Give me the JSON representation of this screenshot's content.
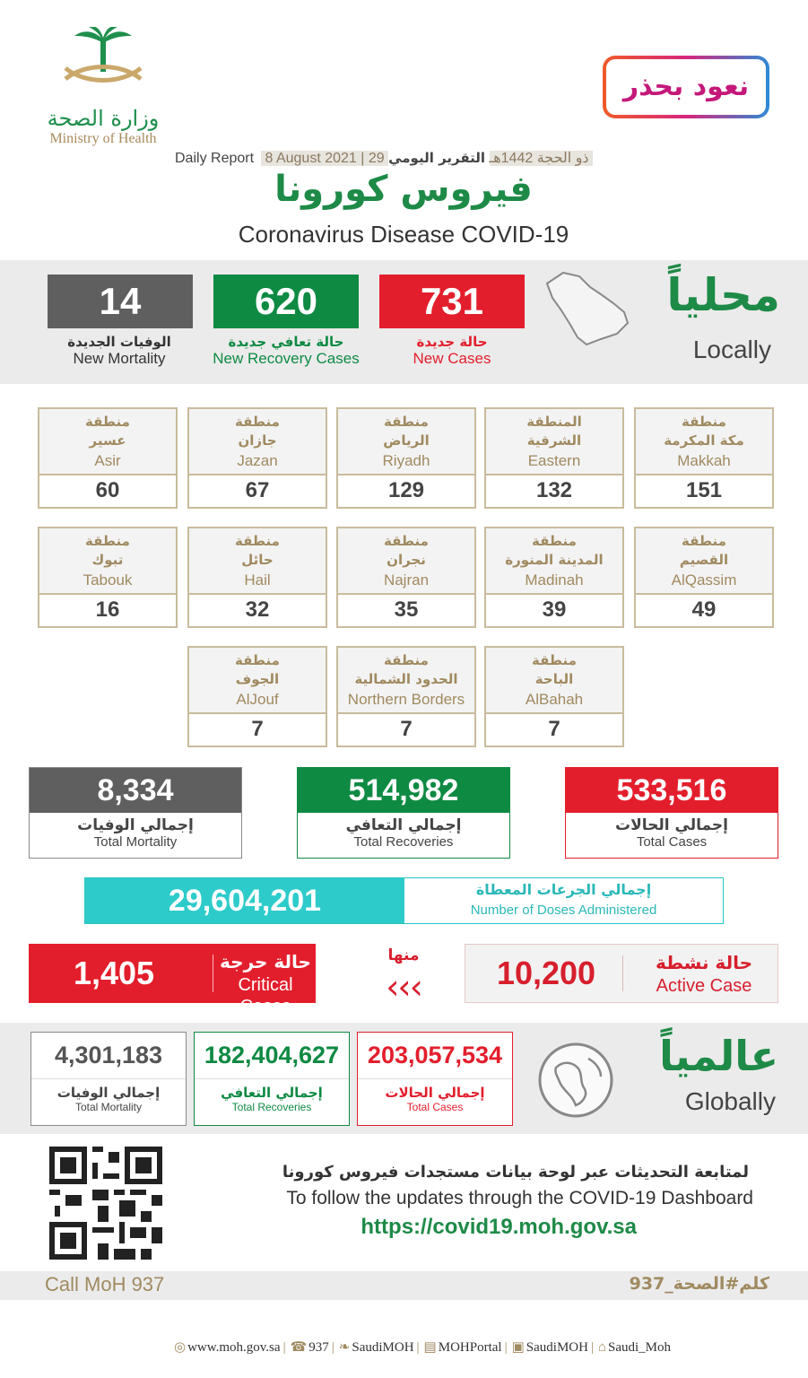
{
  "header": {
    "moh_ar": "وزارة الصحة",
    "moh_en": "Ministry of Health",
    "campaign": "نعود بحذر",
    "daily_ar": "التقرير اليومي",
    "date_hijri": "29 ذو الحجة 1442هـ",
    "date_greg": "8 August 2021",
    "daily_en": "Daily Report",
    "title_ar": "فيروس كورونا",
    "title_en": "Coronavirus Disease COVID-19"
  },
  "local": {
    "title_ar": "محلياً",
    "title_en": "Locally",
    "new_cases": {
      "value": "731",
      "ar": "حالة جديدة",
      "en": "New Cases",
      "color": "#e31e2c"
    },
    "new_recovery": {
      "value": "620",
      "ar": "حالة تعافي جديدة",
      "en": "New Recovery Cases",
      "color": "#0e8a43"
    },
    "new_mortality": {
      "value": "14",
      "ar": "الوفيات الجديدة",
      "en": "New Mortality",
      "color": "#5f5f5f"
    }
  },
  "regions": [
    {
      "pre": "منطقة",
      "ar": "مكة المكرمة",
      "en": "Makkah",
      "value": "151"
    },
    {
      "pre": "المنطقة",
      "ar": "الشرقية",
      "en": "Eastern",
      "value": "132"
    },
    {
      "pre": "منطقة",
      "ar": "الرياض",
      "en": "Riyadh",
      "value": "129"
    },
    {
      "pre": "منطقة",
      "ar": "جازان",
      "en": "Jazan",
      "value": "67"
    },
    {
      "pre": "منطقة",
      "ar": "عسير",
      "en": "Asir",
      "value": "60"
    },
    {
      "pre": "منطقة",
      "ar": "القصيم",
      "en": "AlQassim",
      "value": "49"
    },
    {
      "pre": "منطقة",
      "ar": "المدينة المنورة",
      "en": "Madinah",
      "value": "39"
    },
    {
      "pre": "منطقة",
      "ar": "نجران",
      "en": "Najran",
      "value": "35"
    },
    {
      "pre": "منطقة",
      "ar": "حائل",
      "en": "Hail",
      "value": "32"
    },
    {
      "pre": "منطقة",
      "ar": "تبوك",
      "en": "Tabouk",
      "value": "16"
    },
    {
      "pre": "منطقة",
      "ar": "الباحة",
      "en": "AlBahah",
      "value": "7"
    },
    {
      "pre": "منطقة",
      "ar": "الحدود الشمالية",
      "en": "Northern Borders",
      "value": "7"
    },
    {
      "pre": "منطقة",
      "ar": "الجوف",
      "en": "AlJouf",
      "value": "7"
    }
  ],
  "totals": {
    "cases": {
      "value": "533,516",
      "ar": "إجمالي الحالات",
      "en": "Total Cases",
      "color": "#e31e2c"
    },
    "recoveries": {
      "value": "514,982",
      "ar": "إجمالي التعافي",
      "en": "Total Recoveries",
      "color": "#0e8a43"
    },
    "mortality": {
      "value": "8,334",
      "ar": "إجمالي الوفيات",
      "en": "Total Mortality",
      "color": "#5f5f5f"
    }
  },
  "doses": {
    "value": "29,604,201",
    "ar": "إجمالي الجرعات المعطاة",
    "en": "Number of Doses Administered"
  },
  "active": {
    "value": "10,200",
    "ar": "حالة نشطة",
    "en": "Active Case"
  },
  "of_which": "منها",
  "critical": {
    "value": "1,405",
    "ar": "حالة حرجة",
    "en": "Critical Cases"
  },
  "global": {
    "title_ar": "عالمياً",
    "title_en": "Globally",
    "cases": {
      "value": "203,057,534",
      "ar": "إجمالي الحالات",
      "en": "Total Cases",
      "color": "#e31e2c"
    },
    "recoveries": {
      "value": "182,404,627",
      "ar": "إجمالي التعافي",
      "en": "Total Recoveries",
      "color": "#0e8a43"
    },
    "mortality": {
      "value": "4,301,183",
      "ar": "إجمالي الوفيات",
      "en": "Total Mortality",
      "color": "#5f5f5f"
    }
  },
  "follow": {
    "ar": "لمتابعة التحديثات عبر لوحة بيانات مستجدات فيروس كورونا",
    "en": "To follow the updates through the COVID-19 Dashboard",
    "url": "https://covid19.moh.gov.sa"
  },
  "call": {
    "en": "Call MoH 937",
    "ar": "كلم#الصحة_937"
  },
  "footer": [
    {
      "icon": "globe-icon",
      "text": "www.moh.gov.sa"
    },
    {
      "icon": "phone-icon",
      "text": "937"
    },
    {
      "icon": "twitter-icon",
      "text": "SaudiMOH"
    },
    {
      "icon": "portal-icon",
      "text": "MOHPortal"
    },
    {
      "icon": "instagram-icon",
      "text": "SaudiMOH"
    },
    {
      "icon": "snapchat-icon",
      "text": "Saudi_Moh"
    }
  ]
}
